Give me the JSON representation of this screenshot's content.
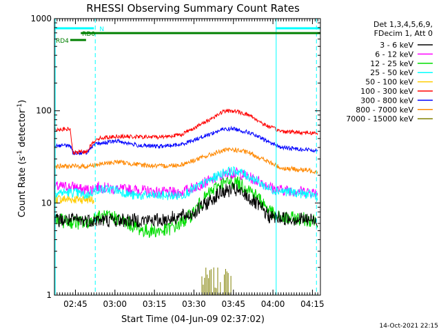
{
  "chart_data": {
    "type": "line",
    "title": "RHESSI Observing Summary Count Rates",
    "xlabel": "Start Time (04-Jun-09 02:37:02)",
    "ylabel_parts": [
      "Count Rate (s",
      "-1",
      " detector",
      "-1",
      ")"
    ],
    "ylim": [
      1,
      1000
    ],
    "y_scale": "log",
    "xlim_minutes_after_0237": [
      0,
      101
    ],
    "x_ticks": [
      {
        "label": "02:45",
        "t": 7.97
      },
      {
        "label": "03:00",
        "t": 22.97
      },
      {
        "label": "03:15",
        "t": 37.97
      },
      {
        "label": "03:30",
        "t": 52.97
      },
      {
        "label": "03:45",
        "t": 67.97
      },
      {
        "label": "04:00",
        "t": 82.97
      },
      {
        "label": "04:15",
        "t": 97.97
      }
    ],
    "y_ticks": [
      {
        "label": "1",
        "v": 1
      },
      {
        "label": "10",
        "v": 10
      },
      {
        "label": "100",
        "v": 100
      },
      {
        "label": "1000",
        "v": 1000
      }
    ],
    "legend": {
      "header": [
        "Det 1,3,4,5,6,9,",
        "FDecim 1, Att 0"
      ],
      "placement": "right"
    },
    "series": [
      {
        "name": "3 - 6 keV",
        "color": "#000000"
      },
      {
        "name": "6 - 12 keV",
        "color": "#ff00ff"
      },
      {
        "name": "12 - 25 keV",
        "color": "#00dd00"
      },
      {
        "name": "25 - 50 keV",
        "color": "#00ffff"
      },
      {
        "name": "50 - 100 keV",
        "color": "#ffcc00"
      },
      {
        "name": "100 - 300 keV",
        "color": "#ff0000"
      },
      {
        "name": "300 - 800 keV",
        "color": "#0000ff"
      },
      {
        "name": "800 - 7000 keV",
        "color": "#ff8800"
      },
      {
        "name": "7000 - 15000 keV",
        "color": "#808000"
      }
    ],
    "series_profiles": [
      {
        "name": "3 - 6 keV",
        "points": [
          [
            0,
            6.5
          ],
          [
            40,
            6.5
          ],
          [
            52,
            7.5
          ],
          [
            58,
            10
          ],
          [
            63,
            13
          ],
          [
            68,
            14
          ],
          [
            73,
            12
          ],
          [
            78,
            9
          ],
          [
            82,
            7
          ],
          [
            100,
            6.5
          ]
        ]
      },
      {
        "name": "6 - 12 keV",
        "points": [
          [
            0,
            15
          ],
          [
            8,
            15
          ],
          [
            10,
            14
          ],
          [
            14,
            14
          ],
          [
            16,
            15
          ],
          [
            24,
            14
          ],
          [
            30,
            14
          ],
          [
            40,
            13
          ],
          [
            48,
            13
          ],
          [
            58,
            17
          ],
          [
            66,
            21
          ],
          [
            70,
            21
          ],
          [
            78,
            17
          ],
          [
            84,
            14
          ],
          [
            100,
            13
          ]
        ]
      },
      {
        "name": "12 - 25 keV",
        "points": [
          [
            0,
            6.5
          ],
          [
            12,
            6
          ],
          [
            16,
            7
          ],
          [
            23,
            7
          ],
          [
            28,
            6
          ],
          [
            34,
            5
          ],
          [
            42,
            5
          ],
          [
            48,
            6
          ],
          [
            52,
            7.5
          ],
          [
            58,
            12
          ],
          [
            63,
            16
          ],
          [
            68,
            17
          ],
          [
            73,
            15
          ],
          [
            78,
            11
          ],
          [
            84,
            7
          ],
          [
            100,
            6.5
          ]
        ]
      },
      {
        "name": "25 - 50 keV",
        "points": [
          [
            0,
            13
          ],
          [
            8,
            13
          ],
          [
            12,
            12
          ],
          [
            16,
            14
          ],
          [
            23,
            14
          ],
          [
            30,
            12
          ],
          [
            40,
            12
          ],
          [
            48,
            12
          ],
          [
            58,
            17
          ],
          [
            65,
            22
          ],
          [
            70,
            22
          ],
          [
            76,
            18
          ],
          [
            82,
            14
          ],
          [
            100,
            12
          ]
        ]
      },
      {
        "name": "50 - 100 keV",
        "points": [
          [
            0,
            11
          ],
          [
            12,
            11
          ],
          [
            15,
            11
          ]
        ]
      },
      {
        "name": "100 - 300 keV",
        "points": [
          [
            0,
            63
          ],
          [
            6,
            63
          ],
          [
            7,
            35
          ],
          [
            12,
            36
          ],
          [
            16,
            50
          ],
          [
            24,
            53
          ],
          [
            32,
            52
          ],
          [
            40,
            52
          ],
          [
            48,
            55
          ],
          [
            56,
            72
          ],
          [
            64,
            98
          ],
          [
            68,
            100
          ],
          [
            74,
            90
          ],
          [
            80,
            70
          ],
          [
            86,
            60
          ],
          [
            100,
            57
          ]
        ]
      },
      {
        "name": "300 - 800 keV",
        "points": [
          [
            0,
            42
          ],
          [
            6,
            42
          ],
          [
            7,
            35
          ],
          [
            12,
            35
          ],
          [
            16,
            44
          ],
          [
            24,
            47
          ],
          [
            32,
            42
          ],
          [
            40,
            41
          ],
          [
            48,
            43
          ],
          [
            56,
            52
          ],
          [
            64,
            63
          ],
          [
            68,
            64
          ],
          [
            74,
            58
          ],
          [
            80,
            48
          ],
          [
            86,
            40
          ],
          [
            100,
            37
          ]
        ]
      },
      {
        "name": "800 - 7000 keV",
        "points": [
          [
            0,
            25
          ],
          [
            12,
            25
          ],
          [
            16,
            26
          ],
          [
            24,
            28
          ],
          [
            32,
            26
          ],
          [
            40,
            25
          ],
          [
            48,
            26
          ],
          [
            56,
            31
          ],
          [
            64,
            37
          ],
          [
            68,
            38
          ],
          [
            74,
            35
          ],
          [
            80,
            29
          ],
          [
            86,
            24
          ],
          [
            100,
            22
          ]
        ]
      },
      {
        "name": "7000 - 15000 keV",
        "points": [
          [
            56,
            1
          ],
          [
            57,
            2
          ],
          [
            66,
            2
          ],
          [
            67,
            1
          ]
        ]
      }
    ],
    "attenuator_bars": [
      {
        "label": "N",
        "color": "#00ffff",
        "segments": [
          [
            0,
            15
          ]
        ],
        "level": 1
      },
      {
        "label": "",
        "color": "#00ffff",
        "segments": [
          [
            84,
            101
          ]
        ],
        "level": 1
      },
      {
        "label": "RD0",
        "color": "#008000",
        "segments": [
          [
            10,
            101
          ]
        ],
        "level": 2
      },
      {
        "label": "RD4",
        "color": "#008000",
        "segments": [
          [
            6,
            12
          ]
        ],
        "level": 3
      }
    ],
    "vertical_markers": [
      {
        "t": 0.3,
        "color": "#00ffff",
        "style": "solid"
      },
      {
        "t": 15.5,
        "color": "#00ffff",
        "style": "dashed"
      },
      {
        "t": 84.2,
        "color": "#00ffff",
        "style": "solid"
      },
      {
        "t": 99.5,
        "color": "#00ffff",
        "style": "dashed"
      }
    ],
    "grid": false
  },
  "footer": {
    "timestamp": "14-Oct-2021 22:15"
  }
}
